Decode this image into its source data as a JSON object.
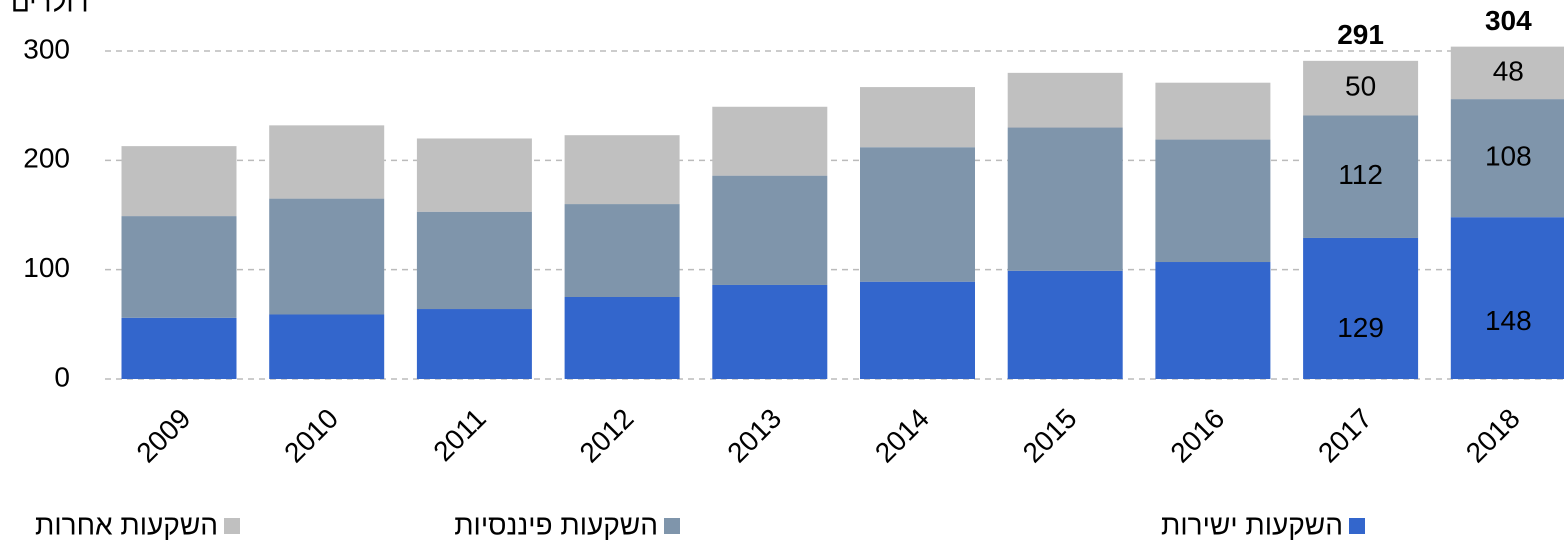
{
  "chart_data": {
    "type": "stacked-bar",
    "y_axis_label": "דולרים",
    "categories": [
      "2009",
      "2010",
      "2011",
      "2012",
      "2013",
      "2014",
      "2015",
      "2016",
      "2017",
      "2018"
    ],
    "series": [
      {
        "name": "השקעות ישירות",
        "color": "#3366cc",
        "values": [
          56,
          59,
          64,
          75,
          86,
          89,
          99,
          107,
          129,
          148
        ]
      },
      {
        "name": "השקעות פיננסיות",
        "color": "#7f95ab",
        "values": [
          93,
          106,
          89,
          85,
          100,
          123,
          131,
          112,
          112,
          108
        ]
      },
      {
        "name": "השקעות אחרות",
        "color": "#c0c0c0",
        "values": [
          64,
          67,
          67,
          63,
          63,
          55,
          50,
          52,
          50,
          48
        ]
      }
    ],
    "totals": [
      null,
      null,
      null,
      null,
      null,
      null,
      null,
      null,
      291,
      304
    ],
    "label_categories": [
      "2017",
      "2018"
    ],
    "ylim": [
      0,
      300
    ],
    "yticks": [
      0,
      100,
      200,
      300
    ],
    "grid": true
  }
}
